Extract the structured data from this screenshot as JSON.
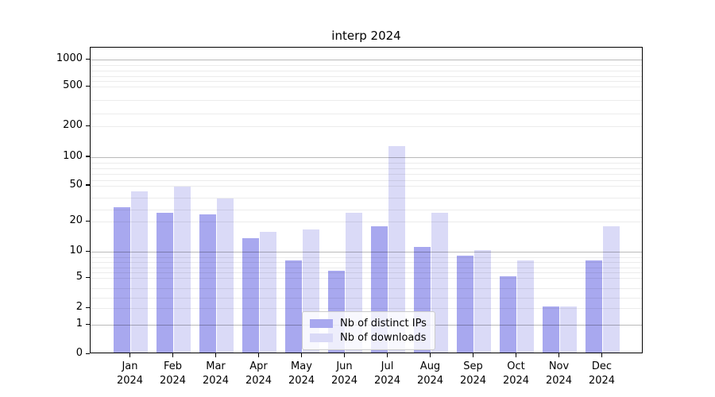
{
  "title": "interp 2024",
  "chart_data": {
    "type": "bar",
    "title": "interp 2024",
    "categories": [
      "Jan\n2024",
      "Feb\n2024",
      "Mar\n2024",
      "Apr\n2024",
      "May\n2024",
      "Jun\n2024",
      "Jul\n2024",
      "Aug\n2024",
      "Sep\n2024",
      "Oct\n2024",
      "Nov\n2024",
      "Dec\n2024"
    ],
    "series": [
      {
        "name": "Nb of distinct IPs",
        "color": "#a8a8ef",
        "values": [
          31,
          26,
          25,
          14,
          8,
          6,
          18,
          11,
          9,
          5,
          2,
          8
        ]
      },
      {
        "name": "Nb of downloads",
        "color": "#dadaf7",
        "values": [
          44,
          48,
          38,
          16,
          17,
          26,
          130,
          26,
          10,
          8,
          2,
          18
        ]
      }
    ],
    "xlabel": "",
    "ylabel": "",
    "y_scale": "custom-interp-log-like",
    "y_ticks": [
      0,
      1,
      2,
      5,
      10,
      20,
      50,
      100,
      200,
      500,
      1000
    ],
    "y_tick_labels": [
      "0",
      "1",
      "2",
      "5",
      "10",
      "20",
      "50",
      "100",
      "200",
      "500",
      "1000"
    ],
    "y_major_gridline_values": [
      1,
      10,
      100,
      1000
    ],
    "y_minor_gridline_values": [
      2,
      3,
      4,
      5,
      6,
      7,
      8,
      9,
      20,
      30,
      40,
      50,
      60,
      70,
      80,
      90,
      200,
      300,
      400,
      500,
      600,
      700,
      800,
      900
    ],
    "ylim": [
      0,
      1400
    ],
    "grid": true,
    "legend_position": "lower center",
    "grid_major_color": "#bdbdbd",
    "grid_minor_color": "#ececec",
    "axis_color": "#000000",
    "background_color": "#ffffff"
  },
  "legend": {
    "items": [
      {
        "label": "Nb of distinct IPs"
      },
      {
        "label": "Nb of downloads"
      }
    ]
  }
}
